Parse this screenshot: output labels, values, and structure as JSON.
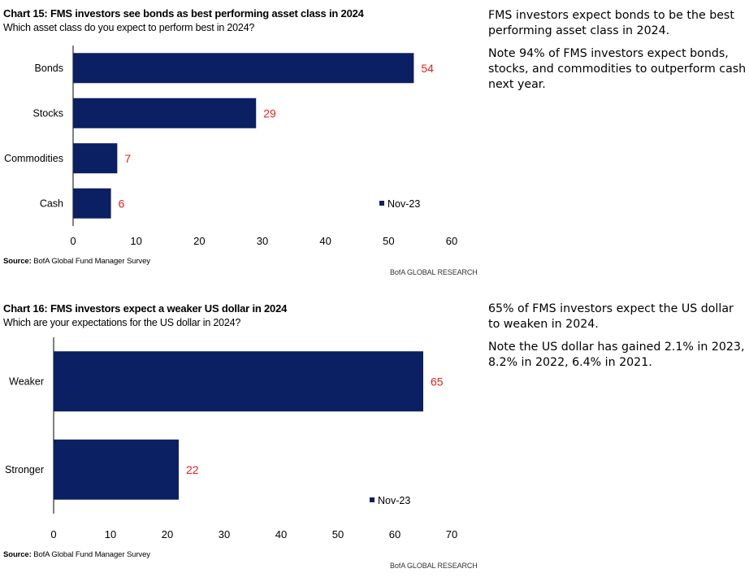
{
  "chart15": {
    "title": "Chart 15: FMS investors see bonds as best performing asset class in 2024",
    "subtitle": "Which asset class do you expect to perform best in 2024?",
    "source_label": "Source:",
    "source_text": " BofA Global Fund Manager Survey",
    "brand": "BofA GLOBAL RESEARCH",
    "note": [
      "FMS investors expect bonds to be the best performing asset class in 2024.",
      "Note 94% of FMS investors expect bonds, stocks, and commodities to outperform cash next year."
    ]
  },
  "chart16": {
    "title": "Chart 16: FMS investors expect a weaker US dollar in 2024",
    "subtitle": "Which are your expectations for the US dollar in 2024?",
    "source_label": "Source:",
    "source_text": " BofA Global Fund Manager Survey",
    "brand": "BofA GLOBAL RESEARCH",
    "note": [
      "65% of FMS investors expect the US dollar to weaken in 2024.",
      "Note the US dollar has gained 2.1% in 2023, 8.2% in 2022, 6.4% in 2021."
    ]
  },
  "colors": {
    "bar": "#0b1f63",
    "label": "#e8211a",
    "axis": "#000000"
  },
  "chart_data": [
    {
      "type": "bar",
      "orientation": "horizontal",
      "title": "Chart 15: FMS investors see bonds as best performing asset class in 2024",
      "subtitle": "Which asset class do you expect to perform best in 2024?",
      "categories": [
        "Bonds",
        "Stocks",
        "Commodities",
        "Cash"
      ],
      "series": [
        {
          "name": "Nov-23",
          "values": [
            54,
            29,
            7,
            6
          ]
        }
      ],
      "xlim": [
        0,
        60
      ],
      "xticks": [
        "0",
        "10",
        "20",
        "30",
        "40",
        "50",
        "60"
      ],
      "grid": false,
      "legend": "bottom-right"
    },
    {
      "type": "bar",
      "orientation": "horizontal",
      "title": "Chart 16: FMS investors expect a weaker US dollar in 2024",
      "subtitle": "Which are your expectations for the US dollar in 2024?",
      "categories": [
        "Weaker",
        "Stronger"
      ],
      "series": [
        {
          "name": "Nov-23",
          "values": [
            65,
            22
          ]
        }
      ],
      "xlim": [
        0,
        70
      ],
      "xticks": [
        "0",
        "10",
        "20",
        "30",
        "40",
        "50",
        "60",
        "70"
      ],
      "grid": false,
      "legend": "bottom-right"
    }
  ]
}
